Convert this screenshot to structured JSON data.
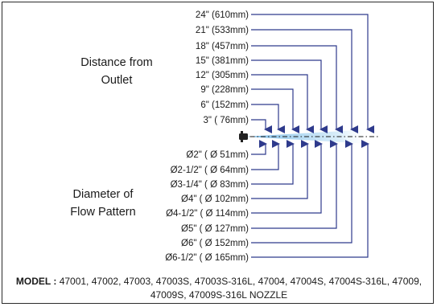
{
  "distance_title_line1": "Distance from",
  "distance_title_line2": "Outlet",
  "diameter_title_line1": "Diameter of",
  "diameter_title_line2": "Flow Pattern",
  "distances": [
    "24\" (610mm)",
    "21\" (533mm)",
    "18\" (457mm)",
    "15\" (381mm)",
    "12\" (305mm)",
    "9\" (228mm)",
    "6\" (152mm)",
    "3\" ( 76mm)"
  ],
  "diameters": [
    "Ø2\" ( Ø 51mm)",
    "Ø2-1/2\" ( Ø 64mm)",
    "Ø3-1/4\" ( Ø 83mm)",
    "Ø4\" ( Ø 102mm)",
    "Ø4-1/2\" ( Ø 114mm)",
    "Ø5\" ( Ø 127mm)",
    "Ø6\" ( Ø 152mm)",
    "Ø6-1/2\" ( Ø 165mm)"
  ],
  "model_label": "MODEL :",
  "model_text": "47001, 47002, 47003, 47003S, 47003S-316L, 47004, 47004S, 47004S-316L, 47009, 47009S, 47009S-316L NOZZLE",
  "colors": {
    "arrow": "#2e3a8c",
    "spray": "#9fd0ee",
    "nozzle": "#222222"
  }
}
